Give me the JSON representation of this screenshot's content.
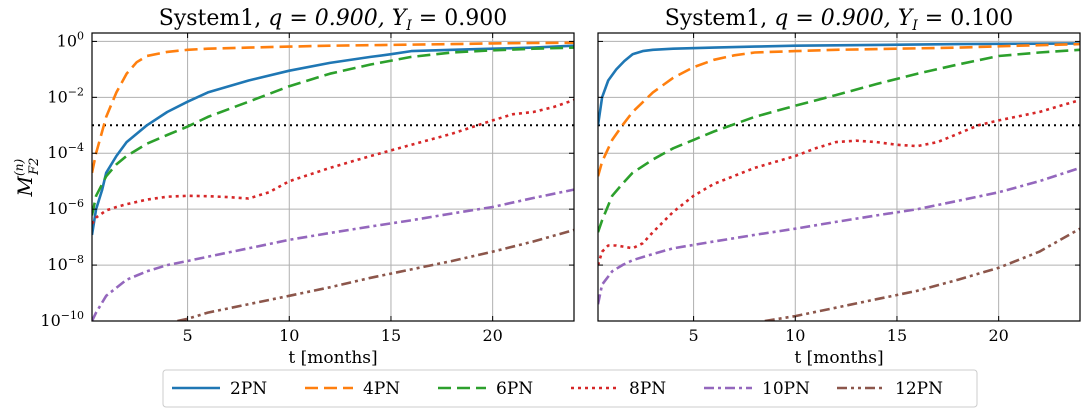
{
  "chart_data": [
    {
      "type": "line",
      "title_prefix": "System1,",
      "title_q": "q = 0.900,",
      "title_Y": "Y",
      "title_Y_sub": "I",
      "title_Y_value": " = 0.900",
      "xlabel": "t [months]",
      "ylabel_main": "M",
      "ylabel_sub": "F2",
      "ylabel_sup": "(n)",
      "yscale": "log",
      "xlim": [
        0.3,
        24
      ],
      "ylim": [
        1e-10,
        2
      ],
      "xticks": [
        5,
        10,
        15,
        20
      ],
      "yticks": [
        1e-10,
        1e-08,
        1e-06,
        0.0001,
        0.01,
        1
      ],
      "hline": 0.001,
      "grid": true,
      "series": [
        {
          "name": "2PN",
          "x": [
            0.3,
            0.5,
            0.8,
            1.0,
            1.5,
            2.0,
            3.0,
            4.0,
            5.0,
            6.0,
            8.0,
            10.0,
            12.0,
            14.0,
            15.0,
            16.0,
            18.0,
            20.0,
            22.0,
            24.0
          ],
          "y": [
            1.2e-07,
            1e-06,
            5e-06,
            2e-05,
            8e-05,
            0.00025,
            0.001,
            0.003,
            0.007,
            0.015,
            0.04,
            0.09,
            0.17,
            0.28,
            0.35,
            0.45,
            0.5,
            0.55,
            0.6,
            0.7
          ]
        },
        {
          "name": "4PN",
          "x": [
            0.3,
            0.5,
            1.0,
            1.5,
            2.0,
            2.5,
            3.0,
            4.0,
            5.0,
            6.0,
            8.0,
            10.0,
            12.0,
            15.0,
            18.0,
            20.0,
            22.0,
            24.0
          ],
          "y": [
            2e-05,
            0.0001,
            0.002,
            0.015,
            0.07,
            0.18,
            0.3,
            0.42,
            0.5,
            0.55,
            0.6,
            0.65,
            0.7,
            0.75,
            0.8,
            0.85,
            0.88,
            0.9
          ]
        },
        {
          "name": "6PN",
          "x": [
            0.3,
            0.5,
            1.0,
            1.5,
            2.0,
            3.0,
            4.0,
            5.0,
            6.0,
            8.0,
            10.0,
            12.0,
            14.0,
            16.0,
            18.0,
            20.0,
            22.0,
            24.0
          ],
          "y": [
            6e-07,
            3e-06,
            1.5e-05,
            4e-05,
            8e-05,
            0.00022,
            0.00045,
            0.0009,
            0.002,
            0.007,
            0.025,
            0.07,
            0.15,
            0.28,
            0.4,
            0.48,
            0.55,
            0.6
          ]
        },
        {
          "name": "8PN",
          "x": [
            0.3,
            0.5,
            1.0,
            1.5,
            2.0,
            3.0,
            4.0,
            5.0,
            6.0,
            7.0,
            8.0,
            9.0,
            10.0,
            12.0,
            14.0,
            16.0,
            18.0,
            20.0,
            21.0,
            22.0,
            23.0,
            24.0
          ],
          "y": [
            3e-07,
            5e-07,
            9e-07,
            1.2e-06,
            1.5e-06,
            2.2e-06,
            2.8e-06,
            3e-06,
            2.9e-06,
            2.7e-06,
            2.4e-06,
            4e-06,
            1e-05,
            3e-05,
            8e-05,
            0.0002,
            0.0005,
            0.0015,
            0.0025,
            0.003,
            0.0045,
            0.008
          ]
        },
        {
          "name": "10PN",
          "x": [
            0.3,
            0.5,
            1.0,
            2.0,
            3.0,
            4.0,
            5.0,
            6.0,
            8.0,
            10.0,
            12.0,
            14.0,
            16.0,
            18.0,
            20.0,
            22.0,
            24.0
          ],
          "y": [
            1e-10,
            2e-10,
            8e-10,
            3e-09,
            6e-09,
            1e-08,
            1.4e-08,
            2e-08,
            4e-08,
            8e-08,
            1.4e-07,
            2.4e-07,
            4e-07,
            7e-07,
            1.2e-06,
            2.5e-06,
            5e-06
          ]
        },
        {
          "name": "12PN",
          "x": [
            4.5,
            5.0,
            6.0,
            8.0,
            10.0,
            12.0,
            14.0,
            16.0,
            18.0,
            20.0,
            22.0,
            24.0
          ],
          "y": [
            1e-10,
            1.2e-10,
            2e-10,
            4e-10,
            8e-10,
            1.6e-09,
            3.5e-09,
            7e-09,
            1.4e-08,
            3e-08,
            7e-08,
            1.8e-07
          ]
        }
      ]
    },
    {
      "type": "line",
      "title_prefix": "System1,",
      "title_q": "q = 0.900,",
      "title_Y": "Y",
      "title_Y_sub": "I",
      "title_Y_value": " = 0.100",
      "xlabel": "t [months]",
      "yscale": "log",
      "xlim": [
        0.3,
        24
      ],
      "ylim": [
        1e-10,
        2
      ],
      "xticks": [
        5,
        10,
        15,
        20
      ],
      "hline": 0.001,
      "grid": true,
      "series": [
        {
          "name": "2PN",
          "x": [
            0.3,
            0.5,
            0.8,
            1.2,
            1.6,
            2.0,
            2.5,
            3.0,
            4.0,
            6.0,
            8.0,
            10.0,
            14.0,
            18.0,
            24.0
          ],
          "y": [
            0.001,
            0.01,
            0.04,
            0.1,
            0.2,
            0.35,
            0.45,
            0.5,
            0.55,
            0.6,
            0.65,
            0.7,
            0.75,
            0.8,
            0.85
          ]
        },
        {
          "name": "4PN",
          "x": [
            0.3,
            0.5,
            1.0,
            1.5,
            2.0,
            3.0,
            4.0,
            5.0,
            6.0,
            7.0,
            8.0,
            10.0,
            12.0,
            15.0,
            18.0,
            21.0,
            24.0
          ],
          "y": [
            1.5e-05,
            5e-05,
            0.0003,
            0.001,
            0.003,
            0.015,
            0.05,
            0.12,
            0.22,
            0.32,
            0.4,
            0.45,
            0.5,
            0.55,
            0.6,
            0.7,
            0.8
          ]
        },
        {
          "name": "6PN",
          "x": [
            0.3,
            0.5,
            1.0,
            1.5,
            2.0,
            3.0,
            4.0,
            5.0,
            6.0,
            8.0,
            10.0,
            12.0,
            14.0,
            16.0,
            18.0,
            20.0,
            22.0,
            24.0
          ],
          "y": [
            1.5e-07,
            4e-07,
            3e-06,
            8e-06,
            2e-05,
            6e-05,
            0.00015,
            0.0003,
            0.0006,
            0.002,
            0.005,
            0.012,
            0.03,
            0.07,
            0.15,
            0.3,
            0.4,
            0.5
          ]
        },
        {
          "name": "8PN",
          "x": [
            0.3,
            0.5,
            0.8,
            1.2,
            1.6,
            2.0,
            2.5,
            3.0,
            4.0,
            5.0,
            6.0,
            8.0,
            10.0,
            11.0,
            12.0,
            13.0,
            14.0,
            15.0,
            16.0,
            17.0,
            18.0,
            19.0,
            20.0,
            22.0,
            24.0
          ],
          "y": [
            1e-08,
            3e-08,
            5e-08,
            5e-08,
            4.5e-08,
            4e-08,
            6e-08,
            1.5e-07,
            8e-07,
            3e-06,
            8e-06,
            3e-05,
            8e-05,
            0.00015,
            0.00025,
            0.00028,
            0.00025,
            0.0002,
            0.00018,
            0.00025,
            0.0005,
            0.001,
            0.0015,
            0.003,
            0.008
          ]
        },
        {
          "name": "10PN",
          "x": [
            0.3,
            0.5,
            1.0,
            1.5,
            2.0,
            3.0,
            4.0,
            6.0,
            8.0,
            10.0,
            12.0,
            14.0,
            16.0,
            18.0,
            20.0,
            22.0,
            24.0
          ],
          "y": [
            4e-10,
            2e-09,
            6e-09,
            1e-08,
            1.5e-08,
            2.5e-08,
            4e-08,
            7e-08,
            1.2e-07,
            2e-07,
            3.5e-07,
            6e-07,
            1e-06,
            2e-06,
            4e-06,
            1e-05,
            3e-05
          ]
        },
        {
          "name": "12PN",
          "x": [
            8.5,
            10.0,
            12.0,
            14.0,
            16.0,
            18.0,
            20.0,
            22.0,
            24.0
          ],
          "y": [
            1e-10,
            1.5e-10,
            3e-10,
            6e-10,
            1.2e-09,
            3e-09,
            8e-09,
            3e-08,
            2e-07
          ]
        }
      ]
    }
  ],
  "legend": {
    "placement": "bottom-center",
    "items": [
      {
        "label": "2PN",
        "color": "#1f77b4",
        "dash": "solid"
      },
      {
        "label": "4PN",
        "color": "#ff7f0e",
        "dash": "dashed"
      },
      {
        "label": "6PN",
        "color": "#2ca02c",
        "dash": "dashed"
      },
      {
        "label": "8PN",
        "color": "#d62728",
        "dash": "dotted"
      },
      {
        "label": "10PN",
        "color": "#9467bd",
        "dash": "dashdot"
      },
      {
        "label": "12PN",
        "color": "#8c564b",
        "dash": "dashdotdot"
      }
    ]
  },
  "colors": {
    "grid": "#b0b0b0",
    "hline": "#000000"
  }
}
